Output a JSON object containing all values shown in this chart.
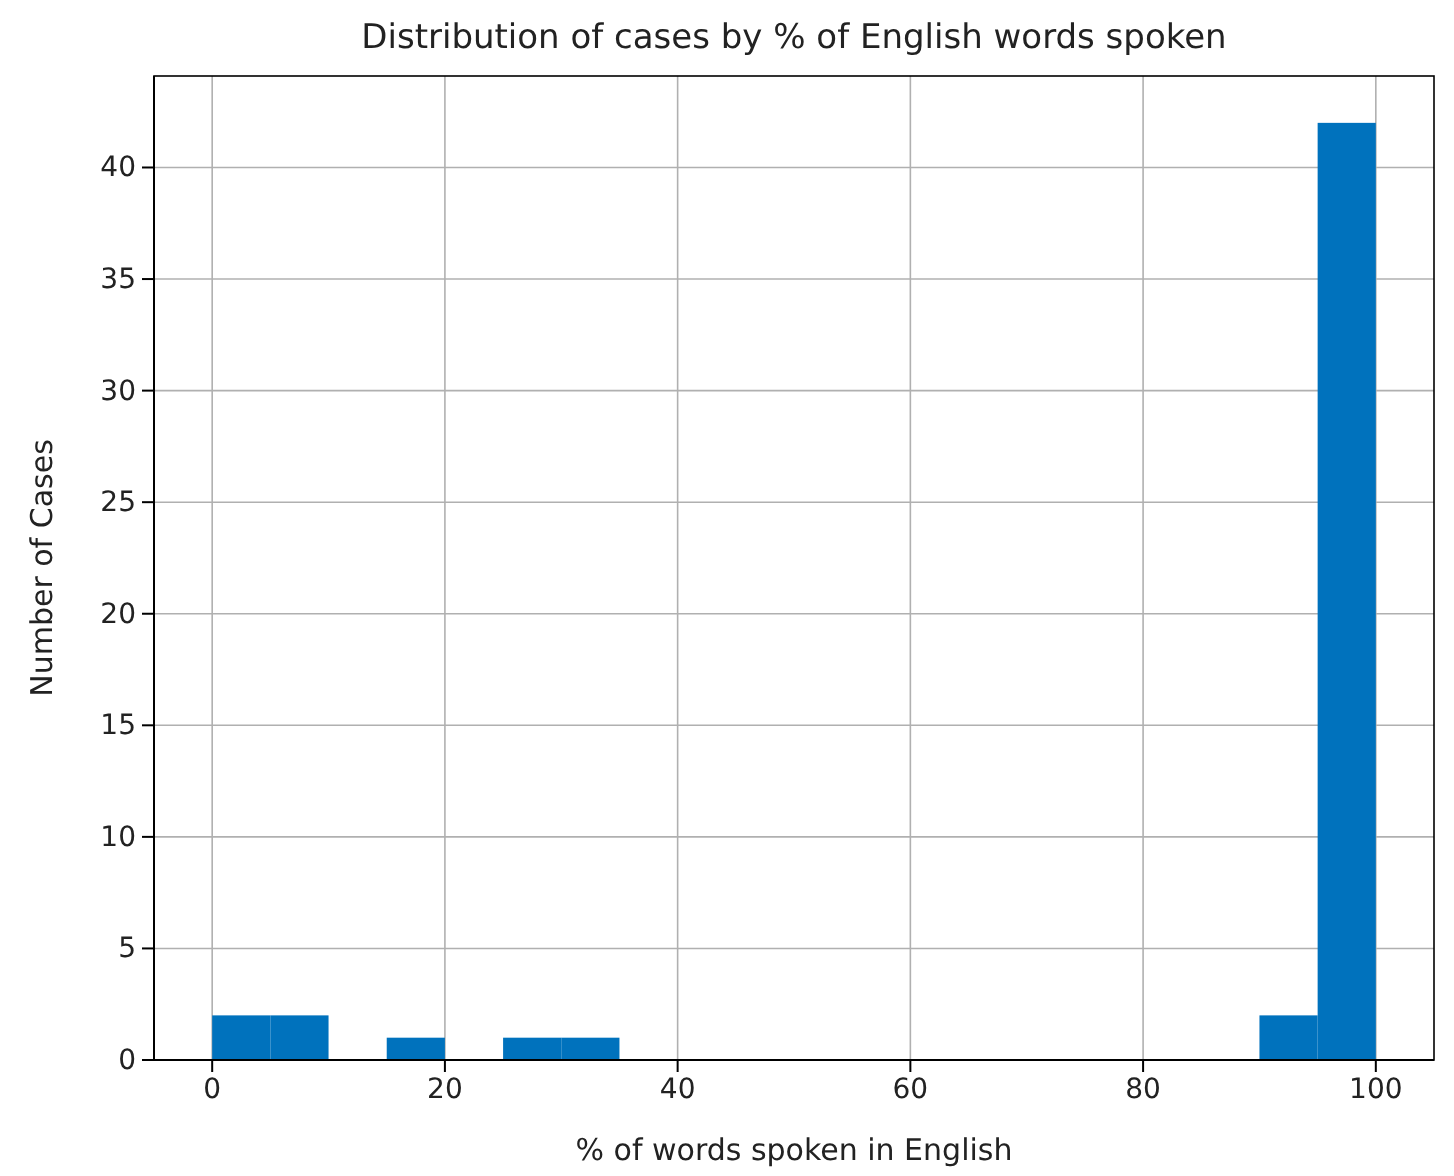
{
  "chart_data": {
    "type": "histogram",
    "title": "Distribution of cases by % of English words spoken",
    "xlabel": "% of words spoken in English",
    "ylabel": "Number of Cases",
    "bins": [
      0,
      5,
      10,
      15,
      20,
      25,
      30,
      35,
      40,
      45,
      50,
      55,
      60,
      65,
      70,
      75,
      80,
      85,
      90,
      95,
      100
    ],
    "values": [
      2,
      2,
      0,
      1,
      0,
      1,
      1,
      0,
      0,
      0,
      0,
      0,
      0,
      0,
      0,
      0,
      0,
      0,
      2,
      42
    ],
    "color": "#0072bd",
    "xlim": [
      -5,
      105
    ],
    "xticks": [
      0,
      20,
      40,
      60,
      80,
      100
    ],
    "ylim": [
      0,
      44.1
    ],
    "yticks": [
      0,
      5,
      10,
      15,
      20,
      25,
      30,
      35,
      40
    ],
    "grid": true
  }
}
